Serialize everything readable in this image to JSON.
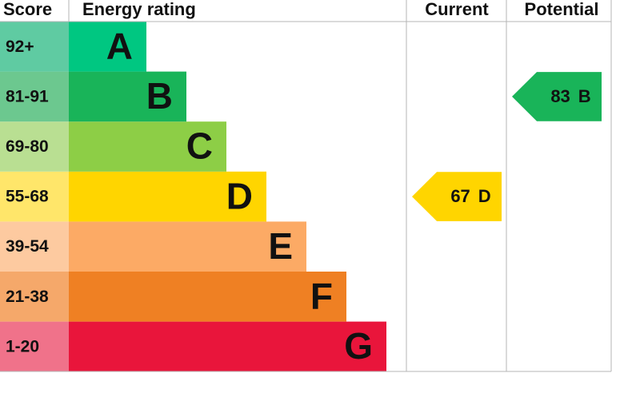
{
  "headers": {
    "score": "Score",
    "rating": "Energy rating",
    "current": "Current",
    "potential": "Potential"
  },
  "bands": [
    {
      "score": "92+",
      "letter": "A",
      "color": "#00c781",
      "score_color": "#5fcba2"
    },
    {
      "score": "81-91",
      "letter": "B",
      "color": "#19b459",
      "score_color": "#6cc88f"
    },
    {
      "score": "69-80",
      "letter": "C",
      "color": "#8dce46",
      "score_color": "#b9df92"
    },
    {
      "score": "55-68",
      "letter": "D",
      "color": "#ffd500",
      "score_color": "#ffe66a"
    },
    {
      "score": "39-54",
      "letter": "E",
      "color": "#fcaa65",
      "score_color": "#fdcaa0"
    },
    {
      "score": "21-38",
      "letter": "F",
      "color": "#ef8023",
      "score_color": "#f5a86a"
    },
    {
      "score": "1-20",
      "letter": "G",
      "color": "#e9153b",
      "score_color": "#f0728a"
    }
  ],
  "current": {
    "value": 67,
    "band": "D"
  },
  "potential": {
    "value": 83,
    "band": "B"
  }
}
